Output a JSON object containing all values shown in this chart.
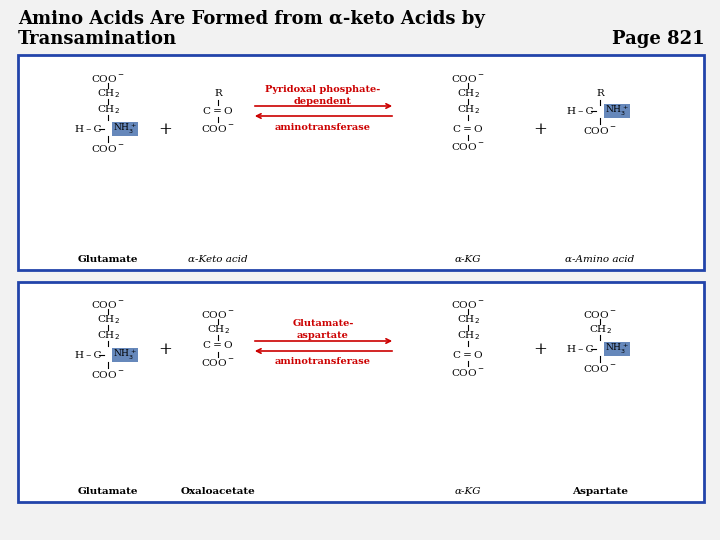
{
  "title_line1": "Amino Acids Are Formed from α-keto Acids by",
  "title_line2": "Transamination",
  "page_ref": "Page 821",
  "bg_color": "#f0f0f0",
  "title_color": "#000000",
  "page_color": "#000000",
  "title_fontsize": 13,
  "box_edge_color": "#2244aa",
  "nh3_bg": "#6688bb",
  "arrow_color": "#cc0000",
  "mol_fontsize": 7.5,
  "reaction1": {
    "enzyme_line1": "Pyridoxal phosphate-",
    "enzyme_line2": "dependent",
    "enzyme_line3": "aminotransferase",
    "reactant1_label": "Glutamate",
    "reactant2_label": "α-Keto acid",
    "product1_label": "α-KG",
    "product2_label": "α-Amino acid"
  },
  "reaction2": {
    "enzyme_line1": "Glutamate-",
    "enzyme_line2": "aspartate",
    "enzyme_line3": "aminotransferase",
    "reactant1_label": "Glutamate",
    "reactant2_label": "Oxaloacetate",
    "product1_label": "α-KG",
    "product2_label": "Aspartate"
  }
}
